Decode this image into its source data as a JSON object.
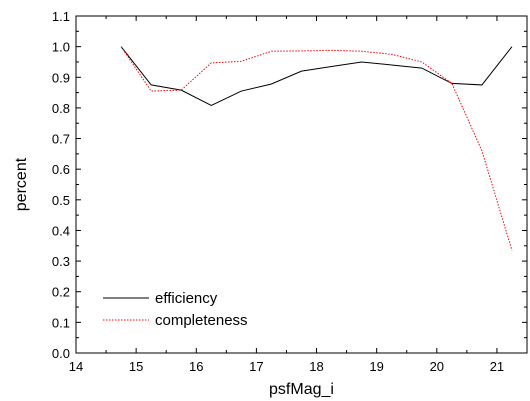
{
  "chart_data": {
    "type": "line",
    "xlabel": "psfMag_i",
    "ylabel": "percent",
    "xlim": [
      14,
      21.5
    ],
    "ylim": [
      0.0,
      1.1
    ],
    "xticks": [
      14,
      15,
      16,
      17,
      18,
      19,
      20,
      21
    ],
    "yticks": [
      0.0,
      0.1,
      0.2,
      0.3,
      0.4,
      0.5,
      0.6,
      0.7,
      0.8,
      0.9,
      1.0,
      1.1
    ],
    "grid": false,
    "legend_position": "bottom-left",
    "series": [
      {
        "name": "efficiency",
        "color": "#000000",
        "style": "solid",
        "x": [
          14.75,
          15.25,
          15.75,
          16.25,
          16.75,
          17.25,
          17.75,
          18.25,
          18.75,
          19.25,
          19.75,
          20.25,
          20.75,
          21.25
        ],
        "y": [
          1.0,
          0.875,
          0.858,
          0.808,
          0.855,
          0.878,
          0.92,
          0.935,
          0.95,
          0.94,
          0.93,
          0.88,
          0.875,
          1.0
        ]
      },
      {
        "name": "completeness",
        "color": "#ff0000",
        "style": "dotted",
        "x": [
          14.75,
          15.25,
          15.75,
          16.25,
          16.75,
          17.25,
          17.75,
          18.25,
          18.75,
          19.25,
          19.75,
          20.25,
          20.75,
          21.25
        ],
        "y": [
          1.0,
          0.855,
          0.858,
          0.947,
          0.952,
          0.985,
          0.986,
          0.988,
          0.985,
          0.975,
          0.95,
          0.88,
          0.66,
          0.335
        ]
      }
    ]
  }
}
